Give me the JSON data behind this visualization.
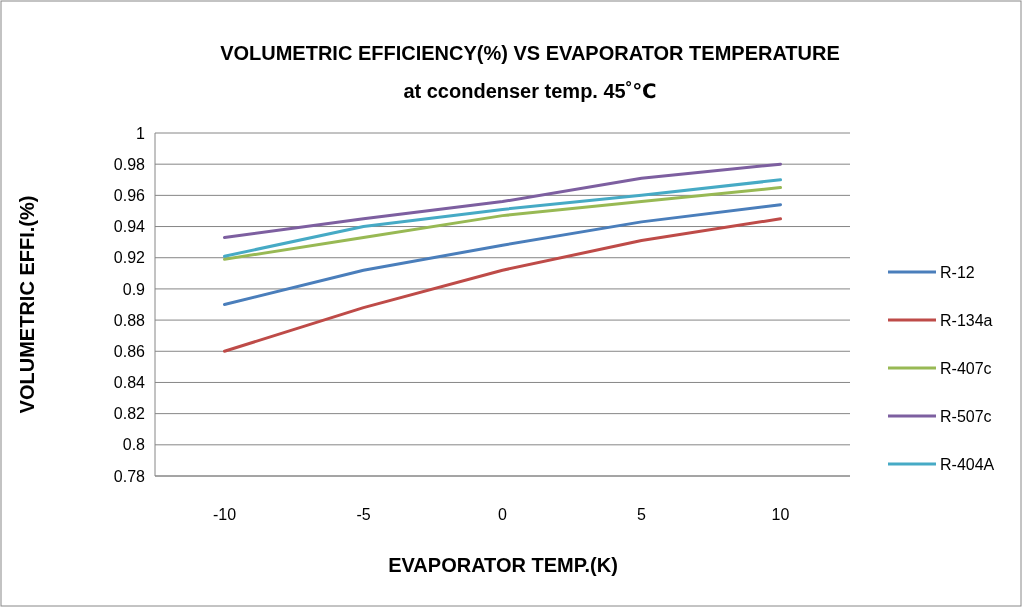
{
  "chart_data": {
    "type": "line",
    "title": "VOLUMETRIC EFFICIENCY(%) VS EVAPORATOR TEMPERATURE at ccondenser temp. 45˚℃",
    "xlabel": "EVAPORATOR TEMP.(K)",
    "ylabel": "VOLUMETRIC EFFI.(%)",
    "categories": [
      "-10",
      "-5",
      "0",
      "5",
      "10"
    ],
    "ylim": [
      0.78,
      1
    ],
    "yticks": [
      0.78,
      0.8,
      0.82,
      0.84,
      0.86,
      0.88,
      0.9,
      0.92,
      0.94,
      0.96,
      0.98,
      1
    ],
    "grid": "y",
    "legend": "right",
    "marker": "none",
    "series": [
      {
        "name": "R-12",
        "color": "#4a7ebb",
        "values": [
          0.89,
          0.912,
          0.928,
          0.943,
          0.954
        ]
      },
      {
        "name": "R-134a",
        "color": "#be4b48",
        "values": [
          0.86,
          0.888,
          0.912,
          0.931,
          0.945
        ]
      },
      {
        "name": "R-407c",
        "color": "#98b954",
        "values": [
          0.919,
          0.933,
          0.947,
          0.956,
          0.965
        ]
      },
      {
        "name": "R-507c",
        "color": "#7d5fa0",
        "values": [
          0.933,
          0.945,
          0.956,
          0.971,
          0.98
        ]
      },
      {
        "name": "R-404A",
        "color": "#46aac5",
        "values": [
          0.921,
          0.94,
          0.951,
          0.96,
          0.97
        ]
      }
    ]
  }
}
